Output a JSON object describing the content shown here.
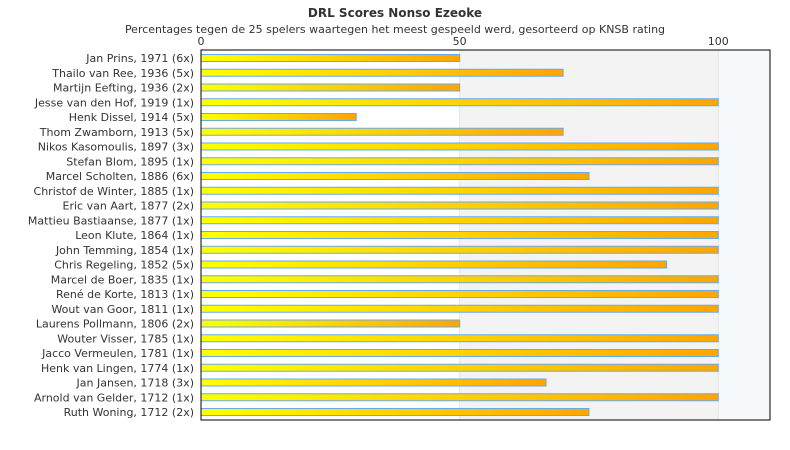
{
  "chart_data": {
    "type": "bar",
    "orientation": "horizontal",
    "title": "DRL Scores Nonso Ezeoke",
    "subtitle": "Percentages tegen de 25 spelers waartegen het meest gespeeld werd, gesorteerd op KNSB rating",
    "xlim": [
      0,
      110
    ],
    "xticks": [
      0,
      50,
      100
    ],
    "categories": [
      "Jan Prins, 1971 (6x)",
      "Thailo van Ree, 1936 (5x)",
      "Martijn Eefting, 1936 (2x)",
      "Jesse van den Hof, 1919 (1x)",
      "Henk Dissel, 1914 (5x)",
      "Thom Zwamborn, 1913 (5x)",
      "Nikos Kasomoulis, 1897 (3x)",
      "Stefan Blom, 1895 (1x)",
      "Marcel Scholten, 1886 (6x)",
      "Christof de Winter, 1885 (1x)",
      "Eric van Aart, 1877 (2x)",
      "Mattieu Bastiaanse, 1877 (1x)",
      "Leon Klute, 1864 (1x)",
      "John Temming, 1854 (1x)",
      "Chris Regeling, 1852 (5x)",
      "Marcel de Boer, 1835 (1x)",
      "René de Korte, 1813 (1x)",
      "Wout van Goor, 1811 (1x)",
      "Laurens Pollmann, 1806 (2x)",
      "Wouter Visser, 1785 (1x)",
      "Jacco Vermeulen, 1781 (1x)",
      "Henk van Lingen, 1774 (1x)",
      "Jan Jansen, 1718 (3x)",
      "Arnold van Gelder, 1712 (1x)",
      "Ruth Woning, 1712 (2x)"
    ],
    "values": [
      50,
      70,
      50,
      100,
      30,
      70,
      100,
      100,
      75,
      100,
      100,
      100,
      100,
      100,
      90,
      100,
      100,
      100,
      50,
      100,
      100,
      100,
      66.7,
      100,
      75
    ],
    "colors": {
      "bar_start": "#ffff00",
      "bar_end": "#ffa500",
      "bar_border": "#66aaee",
      "band_mid": "#f3f3f3",
      "band_high": "#f6f9fc"
    }
  }
}
